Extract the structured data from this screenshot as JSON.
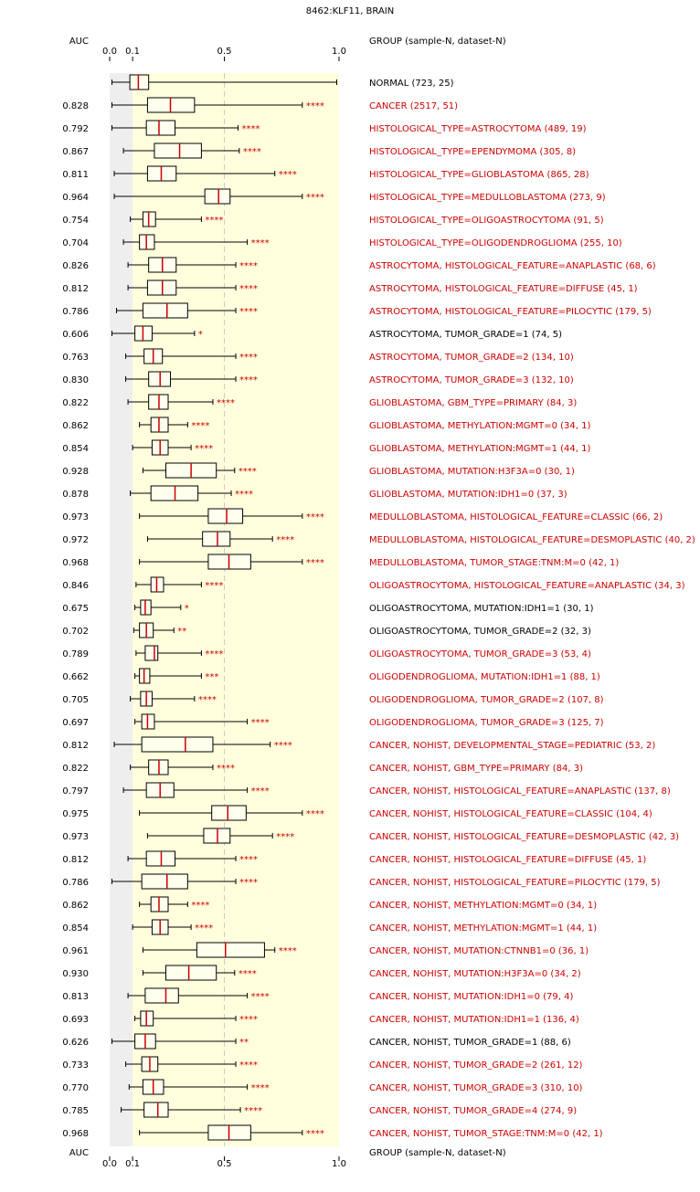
{
  "chart_data": {
    "type": "boxplot",
    "title": "8462:KLF11, BRAIN",
    "auc_header": "AUC",
    "group_header": "GROUP (sample-N, dataset-N)",
    "xlim": [
      0.0,
      1.0
    ],
    "xticks": [
      {
        "value": 0.0,
        "label": "0.0"
      },
      {
        "value": 0.1,
        "label": "0.1"
      },
      {
        "value": 0.5,
        "label": "0.5"
      },
      {
        "value": 1.0,
        "label": "1.0"
      }
    ],
    "shaded_region": [
      0.0,
      0.1
    ],
    "highlight_region": [
      0.1,
      1.0
    ],
    "colors": {
      "significant": "#cc0000",
      "normal": "#000000",
      "median": "#cc0000",
      "grey_region": "#eeeeee",
      "yellow_region": "#ffffdd",
      "refline": "#cccccc"
    },
    "rows": [
      {
        "label": "NORMAL (723, 25)",
        "auc": "",
        "stars": "",
        "sig": false,
        "whisker": [
          0.01,
          0.99
        ],
        "box": [
          0.088,
          0.17
        ],
        "median": 0.125
      },
      {
        "label": "CANCER (2517, 51)",
        "auc": "0.828",
        "stars": "****",
        "sig": true,
        "whisker": [
          0.01,
          0.84
        ],
        "box": [
          0.165,
          0.37
        ],
        "median": 0.265
      },
      {
        "label": "HISTOLOGICAL_TYPE=ASTROCYTOMA (489, 19)",
        "auc": "0.792",
        "stars": "****",
        "sig": true,
        "whisker": [
          0.01,
          0.56
        ],
        "box": [
          0.16,
          0.285
        ],
        "median": 0.215
      },
      {
        "label": "HISTOLOGICAL_TYPE=EPENDYMOMA (305, 8)",
        "auc": "0.867",
        "stars": "****",
        "sig": true,
        "whisker": [
          0.06,
          0.565
        ],
        "box": [
          0.195,
          0.4
        ],
        "median": 0.305
      },
      {
        "label": "HISTOLOGICAL_TYPE=GLIOBLASTOMA (865, 28)",
        "auc": "0.811",
        "stars": "****",
        "sig": true,
        "whisker": [
          0.02,
          0.72
        ],
        "box": [
          0.165,
          0.29
        ],
        "median": 0.225
      },
      {
        "label": "HISTOLOGICAL_TYPE=MEDULLOBLASTOMA (273, 9)",
        "auc": "0.964",
        "stars": "****",
        "sig": true,
        "whisker": [
          0.02,
          0.84
        ],
        "box": [
          0.415,
          0.525
        ],
        "median": 0.475
      },
      {
        "label": "HISTOLOGICAL_TYPE=OLIGOASTROCYTOMA (91, 5)",
        "auc": "0.754",
        "stars": "****",
        "sig": true,
        "whisker": [
          0.09,
          0.4
        ],
        "box": [
          0.145,
          0.2
        ],
        "median": 0.17
      },
      {
        "label": "HISTOLOGICAL_TYPE=OLIGODENDROGLIOMA (255, 10)",
        "auc": "0.704",
        "stars": "****",
        "sig": true,
        "whisker": [
          0.06,
          0.6
        ],
        "box": [
          0.13,
          0.195
        ],
        "median": 0.16
      },
      {
        "label": "ASTROCYTOMA, HISTOLOGICAL_FEATURE=ANAPLASTIC (68, 6)",
        "auc": "0.826",
        "stars": "****",
        "sig": true,
        "whisker": [
          0.08,
          0.55
        ],
        "box": [
          0.17,
          0.29
        ],
        "median": 0.23
      },
      {
        "label": "ASTROCYTOMA, HISTOLOGICAL_FEATURE=DIFFUSE (45, 1)",
        "auc": "0.812",
        "stars": "****",
        "sig": true,
        "whisker": [
          0.08,
          0.55
        ],
        "box": [
          0.165,
          0.29
        ],
        "median": 0.23
      },
      {
        "label": "ASTROCYTOMA, HISTOLOGICAL_FEATURE=PILOCYTIC (179, 5)",
        "auc": "0.786",
        "stars": "****",
        "sig": true,
        "whisker": [
          0.03,
          0.55
        ],
        "box": [
          0.145,
          0.34
        ],
        "median": 0.25
      },
      {
        "label": "ASTROCYTOMA, TUMOR_GRADE=1 (74, 5)",
        "auc": "0.606",
        "stars": "*",
        "sig": false,
        "whisker": [
          0.01,
          0.37
        ],
        "box": [
          0.11,
          0.185
        ],
        "median": 0.145
      },
      {
        "label": "ASTROCYTOMA, TUMOR_GRADE=2 (134, 10)",
        "auc": "0.763",
        "stars": "****",
        "sig": true,
        "whisker": [
          0.07,
          0.55
        ],
        "box": [
          0.15,
          0.23
        ],
        "median": 0.19
      },
      {
        "label": "ASTROCYTOMA, TUMOR_GRADE=3 (132, 10)",
        "auc": "0.830",
        "stars": "****",
        "sig": true,
        "whisker": [
          0.07,
          0.55
        ],
        "box": [
          0.17,
          0.265
        ],
        "median": 0.22
      },
      {
        "label": "GLIOBLASTOMA, GBM_TYPE=PRIMARY (84, 3)",
        "auc": "0.822",
        "stars": "****",
        "sig": true,
        "whisker": [
          0.08,
          0.45
        ],
        "box": [
          0.17,
          0.255
        ],
        "median": 0.215
      },
      {
        "label": "GLIOBLASTOMA, METHYLATION:MGMT=0 (34, 1)",
        "auc": "0.862",
        "stars": "****",
        "sig": true,
        "whisker": [
          0.13,
          0.34
        ],
        "box": [
          0.18,
          0.255
        ],
        "median": 0.215
      },
      {
        "label": "GLIOBLASTOMA, METHYLATION:MGMT=1 (44, 1)",
        "auc": "0.854",
        "stars": "****",
        "sig": true,
        "whisker": [
          0.1,
          0.355
        ],
        "box": [
          0.185,
          0.255
        ],
        "median": 0.22
      },
      {
        "label": "GLIOBLASTOMA, MUTATION:H3F3A=0 (30, 1)",
        "auc": "0.928",
        "stars": "****",
        "sig": true,
        "whisker": [
          0.145,
          0.545
        ],
        "box": [
          0.245,
          0.465
        ],
        "median": 0.355
      },
      {
        "label": "GLIOBLASTOMA, MUTATION:IDH1=0 (37, 3)",
        "auc": "0.878",
        "stars": "****",
        "sig": true,
        "whisker": [
          0.09,
          0.53
        ],
        "box": [
          0.18,
          0.385
        ],
        "median": 0.285
      },
      {
        "label": "MEDULLOBLASTOMA, HISTOLOGICAL_FEATURE=CLASSIC (66, 2)",
        "auc": "0.973",
        "stars": "****",
        "sig": true,
        "whisker": [
          0.13,
          0.84
        ],
        "box": [
          0.43,
          0.58
        ],
        "median": 0.51
      },
      {
        "label": "MEDULLOBLASTOMA, HISTOLOGICAL_FEATURE=DESMOPLASTIC (40, 2)",
        "auc": "0.972",
        "stars": "****",
        "sig": true,
        "whisker": [
          0.165,
          0.71
        ],
        "box": [
          0.405,
          0.525
        ],
        "median": 0.47
      },
      {
        "label": "MEDULLOBLASTOMA, TUMOR_STAGE:TNM:M=0 (42, 1)",
        "auc": "0.968",
        "stars": "****",
        "sig": true,
        "whisker": [
          0.13,
          0.84
        ],
        "box": [
          0.43,
          0.615
        ],
        "median": 0.52
      },
      {
        "label": "OLIGOASTROCYTOMA, HISTOLOGICAL_FEATURE=ANAPLASTIC (34, 3)",
        "auc": "0.846",
        "stars": "****",
        "sig": true,
        "whisker": [
          0.115,
          0.4
        ],
        "box": [
          0.18,
          0.235
        ],
        "median": 0.205
      },
      {
        "label": "OLIGOASTROCYTOMA, MUTATION:IDH1=1 (30, 1)",
        "auc": "0.675",
        "stars": "*",
        "sig": false,
        "whisker": [
          0.11,
          0.31
        ],
        "box": [
          0.135,
          0.18
        ],
        "median": 0.155
      },
      {
        "label": "OLIGOASTROCYTOMA, TUMOR_GRADE=2 (32, 3)",
        "auc": "0.702",
        "stars": "**",
        "sig": false,
        "whisker": [
          0.105,
          0.28
        ],
        "box": [
          0.13,
          0.19
        ],
        "median": 0.16
      },
      {
        "label": "OLIGOASTROCYTOMA, TUMOR_GRADE=3 (53, 4)",
        "auc": "0.789",
        "stars": "****",
        "sig": true,
        "whisker": [
          0.115,
          0.4
        ],
        "box": [
          0.155,
          0.21
        ],
        "median": 0.195
      },
      {
        "label": "OLIGODENDROGLIOMA, MUTATION:IDH1=1 (88, 1)",
        "auc": "0.662",
        "stars": "***",
        "sig": true,
        "whisker": [
          0.11,
          0.4
        ],
        "box": [
          0.13,
          0.175
        ],
        "median": 0.15
      },
      {
        "label": "OLIGODENDROGLIOMA, TUMOR_GRADE=2 (107, 8)",
        "auc": "0.705",
        "stars": "****",
        "sig": true,
        "whisker": [
          0.09,
          0.37
        ],
        "box": [
          0.135,
          0.185
        ],
        "median": 0.16
      },
      {
        "label": "OLIGODENDROGLIOMA, TUMOR_GRADE=3 (125, 7)",
        "auc": "0.697",
        "stars": "****",
        "sig": true,
        "whisker": [
          0.11,
          0.6
        ],
        "box": [
          0.14,
          0.195
        ],
        "median": 0.165
      },
      {
        "label": "CANCER, NOHIST, DEVELOPMENTAL_STAGE=PEDIATRIC (53, 2)",
        "auc": "0.812",
        "stars": "****",
        "sig": true,
        "whisker": [
          0.02,
          0.7
        ],
        "box": [
          0.14,
          0.45
        ],
        "median": 0.33
      },
      {
        "label": "CANCER, NOHIST, GBM_TYPE=PRIMARY (84, 3)",
        "auc": "0.822",
        "stars": "****",
        "sig": true,
        "whisker": [
          0.09,
          0.45
        ],
        "box": [
          0.17,
          0.255
        ],
        "median": 0.215
      },
      {
        "label": "CANCER, NOHIST, HISTOLOGICAL_FEATURE=ANAPLASTIC (137, 8)",
        "auc": "0.797",
        "stars": "****",
        "sig": true,
        "whisker": [
          0.06,
          0.6
        ],
        "box": [
          0.16,
          0.28
        ],
        "median": 0.22
      },
      {
        "label": "CANCER, NOHIST, HISTOLOGICAL_FEATURE=CLASSIC (104, 4)",
        "auc": "0.975",
        "stars": "****",
        "sig": true,
        "whisker": [
          0.13,
          0.84
        ],
        "box": [
          0.445,
          0.595
        ],
        "median": 0.515
      },
      {
        "label": "CANCER, NOHIST, HISTOLOGICAL_FEATURE=DESMOPLASTIC (42, 3)",
        "auc": "0.973",
        "stars": "****",
        "sig": true,
        "whisker": [
          0.165,
          0.71
        ],
        "box": [
          0.41,
          0.525
        ],
        "median": 0.47
      },
      {
        "label": "CANCER, NOHIST, HISTOLOGICAL_FEATURE=DIFFUSE (45, 1)",
        "auc": "0.812",
        "stars": "****",
        "sig": true,
        "whisker": [
          0.08,
          0.55
        ],
        "box": [
          0.16,
          0.285
        ],
        "median": 0.225
      },
      {
        "label": "CANCER, NOHIST, HISTOLOGICAL_FEATURE=PILOCYTIC (179, 5)",
        "auc": "0.786",
        "stars": "****",
        "sig": true,
        "whisker": [
          0.01,
          0.55
        ],
        "box": [
          0.14,
          0.34
        ],
        "median": 0.25
      },
      {
        "label": "CANCER, NOHIST, METHYLATION:MGMT=0 (34, 1)",
        "auc": "0.862",
        "stars": "****",
        "sig": true,
        "whisker": [
          0.13,
          0.34
        ],
        "box": [
          0.18,
          0.255
        ],
        "median": 0.215
      },
      {
        "label": "CANCER, NOHIST, METHYLATION:MGMT=1 (44, 1)",
        "auc": "0.854",
        "stars": "****",
        "sig": true,
        "whisker": [
          0.1,
          0.355
        ],
        "box": [
          0.185,
          0.255
        ],
        "median": 0.22
      },
      {
        "label": "CANCER, NOHIST, MUTATION:CTNNB1=0 (36, 1)",
        "auc": "0.961",
        "stars": "****",
        "sig": true,
        "whisker": [
          0.145,
          0.72
        ],
        "box": [
          0.38,
          0.675
        ],
        "median": 0.505
      },
      {
        "label": "CANCER, NOHIST, MUTATION:H3F3A=0 (34, 2)",
        "auc": "0.930",
        "stars": "****",
        "sig": true,
        "whisker": [
          0.145,
          0.545
        ],
        "box": [
          0.245,
          0.465
        ],
        "median": 0.345
      },
      {
        "label": "CANCER, NOHIST, MUTATION:IDH1=0 (79, 4)",
        "auc": "0.813",
        "stars": "****",
        "sig": true,
        "whisker": [
          0.08,
          0.6
        ],
        "box": [
          0.155,
          0.3
        ],
        "median": 0.245
      },
      {
        "label": "CANCER, NOHIST, MUTATION:IDH1=1 (136, 4)",
        "auc": "0.693",
        "stars": "****",
        "sig": true,
        "whisker": [
          0.11,
          0.55
        ],
        "box": [
          0.135,
          0.19
        ],
        "median": 0.16
      },
      {
        "label": "CANCER, NOHIST, TUMOR_GRADE=1 (88, 6)",
        "auc": "0.626",
        "stars": "**",
        "sig": false,
        "whisker": [
          0.01,
          0.55
        ],
        "box": [
          0.11,
          0.2
        ],
        "median": 0.155
      },
      {
        "label": "CANCER, NOHIST, TUMOR_GRADE=2 (261, 12)",
        "auc": "0.733",
        "stars": "****",
        "sig": true,
        "whisker": [
          0.07,
          0.55
        ],
        "box": [
          0.14,
          0.21
        ],
        "median": 0.175
      },
      {
        "label": "CANCER, NOHIST, TUMOR_GRADE=3 (310, 10)",
        "auc": "0.770",
        "stars": "****",
        "sig": true,
        "whisker": [
          0.085,
          0.6
        ],
        "box": [
          0.145,
          0.235
        ],
        "median": 0.19
      },
      {
        "label": "CANCER, NOHIST, TUMOR_GRADE=4 (274, 9)",
        "auc": "0.785",
        "stars": "****",
        "sig": true,
        "whisker": [
          0.05,
          0.57
        ],
        "box": [
          0.15,
          0.255
        ],
        "median": 0.21
      },
      {
        "label": "CANCER, NOHIST, TUMOR_STAGE:TNM:M=0 (42, 1)",
        "auc": "0.968",
        "stars": "****",
        "sig": true,
        "whisker": [
          0.13,
          0.84
        ],
        "box": [
          0.43,
          0.615
        ],
        "median": 0.52
      }
    ]
  }
}
